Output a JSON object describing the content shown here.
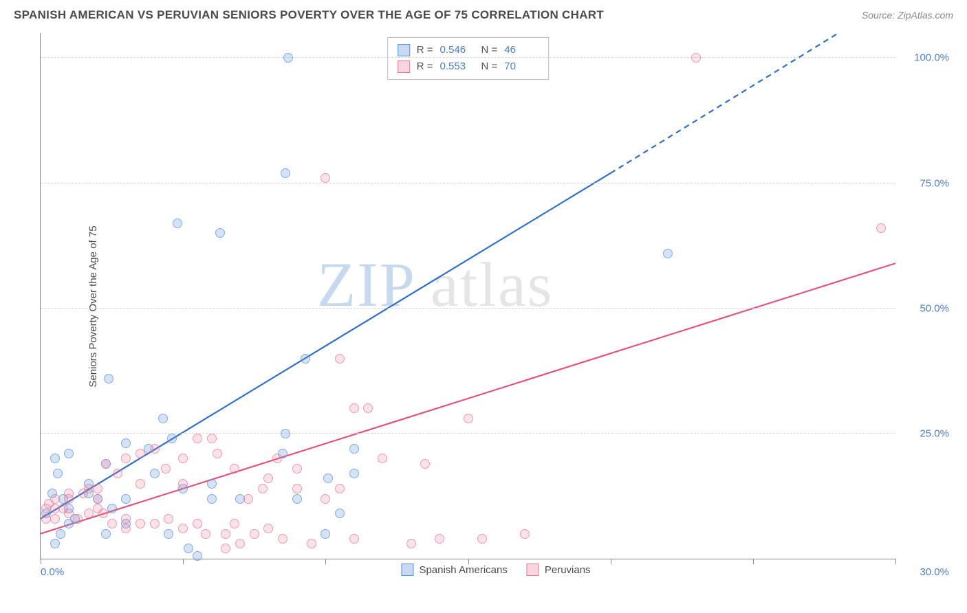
{
  "title": "SPANISH AMERICAN VS PERUVIAN SENIORS POVERTY OVER THE AGE OF 75 CORRELATION CHART",
  "source": "Source: ZipAtlas.com",
  "chart": {
    "type": "scatter",
    "y_axis_label": "Seniors Poverty Over the Age of 75",
    "xlim": [
      0,
      30
    ],
    "ylim": [
      0,
      105
    ],
    "x_ticks": [
      0,
      5,
      10,
      15,
      20,
      25,
      30
    ],
    "x_tick_labels_shown": {
      "0": "0.0%",
      "30": "30.0%"
    },
    "y_ticks": [
      25,
      50,
      75,
      100
    ],
    "y_tick_labels": [
      "25.0%",
      "50.0%",
      "75.0%",
      "100.0%"
    ],
    "background_color": "#ffffff",
    "grid_color": "#d8d8d8",
    "series": [
      {
        "name": "Spanish Americans",
        "color_fill": "rgba(96,150,220,0.35)",
        "color_stroke": "#5a8fd6",
        "marker_size": 14,
        "R": "0.546",
        "N": "46",
        "trend": {
          "x1": 0,
          "y1": 8,
          "x2_solid": 20,
          "y2_solid": 77,
          "x2_dash": 28,
          "y2_dash": 105,
          "stroke": "#2e6fc9",
          "width": 2.2
        },
        "points": [
          [
            8.7,
            100
          ],
          [
            8.6,
            77
          ],
          [
            4.8,
            67
          ],
          [
            6.3,
            65
          ],
          [
            9.3,
            40
          ],
          [
            2.4,
            36
          ],
          [
            4.3,
            28
          ],
          [
            4.6,
            24
          ],
          [
            8.6,
            25
          ],
          [
            1.0,
            21
          ],
          [
            3.0,
            23
          ],
          [
            3.8,
            22
          ],
          [
            2.3,
            19
          ],
          [
            0.5,
            20
          ],
          [
            0.6,
            17
          ],
          [
            0.4,
            13
          ],
          [
            0.8,
            12
          ],
          [
            1.7,
            13
          ],
          [
            1.0,
            10
          ],
          [
            2.0,
            12
          ],
          [
            0.2,
            9
          ],
          [
            1.2,
            8
          ],
          [
            2.5,
            10
          ],
          [
            1.7,
            15
          ],
          [
            3.0,
            12
          ],
          [
            3.0,
            7
          ],
          [
            4.5,
            5
          ],
          [
            5.5,
            0.5
          ],
          [
            5.2,
            2
          ],
          [
            2.3,
            5
          ],
          [
            1.0,
            7
          ],
          [
            0.7,
            5
          ],
          [
            0.5,
            3
          ],
          [
            10.0,
            5
          ],
          [
            10.5,
            9
          ],
          [
            10.1,
            16
          ],
          [
            8.5,
            21
          ],
          [
            6.0,
            12
          ],
          [
            6.0,
            15
          ],
          [
            7.0,
            12
          ],
          [
            11.0,
            22
          ],
          [
            11.0,
            17
          ],
          [
            22.0,
            61
          ],
          [
            9.0,
            12
          ],
          [
            5.0,
            14
          ],
          [
            4.0,
            17
          ]
        ]
      },
      {
        "name": "Peruvians",
        "color_fill": "rgba(235,120,150,0.28)",
        "color_stroke": "#e67a96",
        "marker_size": 14,
        "R": "0.553",
        "N": "70",
        "trend": {
          "x1": 0,
          "y1": 5,
          "x2_solid": 30,
          "y2_solid": 59,
          "stroke": "#e3547d",
          "width": 2.2
        },
        "points": [
          [
            10.0,
            76
          ],
          [
            23.0,
            100
          ],
          [
            29.5,
            66
          ],
          [
            10.5,
            40
          ],
          [
            11.0,
            30
          ],
          [
            11.5,
            30
          ],
          [
            15.0,
            28
          ],
          [
            13.5,
            19
          ],
          [
            12.0,
            20
          ],
          [
            8.3,
            20
          ],
          [
            9.0,
            18
          ],
          [
            9.0,
            14
          ],
          [
            10.5,
            14
          ],
          [
            10.0,
            12
          ],
          [
            8.0,
            16
          ],
          [
            7.8,
            14
          ],
          [
            7.3,
            12
          ],
          [
            6.8,
            18
          ],
          [
            6.0,
            24
          ],
          [
            6.2,
            21
          ],
          [
            5.5,
            24
          ],
          [
            5.0,
            20
          ],
          [
            5.0,
            15
          ],
          [
            4.0,
            22
          ],
          [
            4.4,
            18
          ],
          [
            3.5,
            21
          ],
          [
            3.5,
            15
          ],
          [
            3.0,
            20
          ],
          [
            2.7,
            17
          ],
          [
            2.3,
            19
          ],
          [
            2.0,
            14
          ],
          [
            2.0,
            12
          ],
          [
            1.7,
            14
          ],
          [
            1.5,
            13
          ],
          [
            1.0,
            13
          ],
          [
            1.0,
            12
          ],
          [
            0.5,
            12
          ],
          [
            0.5,
            10
          ],
          [
            0.3,
            11
          ],
          [
            0.2,
            10
          ],
          [
            0.2,
            8
          ],
          [
            0.5,
            8
          ],
          [
            0.8,
            10
          ],
          [
            1.0,
            9
          ],
          [
            1.3,
            8
          ],
          [
            1.7,
            9
          ],
          [
            2.0,
            10
          ],
          [
            2.2,
            9
          ],
          [
            2.5,
            7
          ],
          [
            3.0,
            8
          ],
          [
            3.5,
            7
          ],
          [
            3.0,
            6
          ],
          [
            4.0,
            7
          ],
          [
            4.5,
            8
          ],
          [
            5.0,
            6
          ],
          [
            5.5,
            7
          ],
          [
            5.8,
            5
          ],
          [
            6.5,
            5
          ],
          [
            6.8,
            7
          ],
          [
            7.0,
            3
          ],
          [
            6.5,
            2
          ],
          [
            7.5,
            5
          ],
          [
            8.0,
            6
          ],
          [
            8.5,
            4
          ],
          [
            9.5,
            3
          ],
          [
            11.0,
            4
          ],
          [
            13.0,
            3
          ],
          [
            14.0,
            4
          ],
          [
            15.5,
            4
          ],
          [
            17.0,
            5
          ]
        ]
      }
    ],
    "watermark": {
      "zip": "ZIP",
      "atlas": "atlas"
    }
  },
  "stats_box": {
    "rows": [
      {
        "swatch": "blue",
        "r_label": "R =",
        "r_value": "0.546",
        "n_label": "N =",
        "n_value": "46"
      },
      {
        "swatch": "pink",
        "r_label": "R =",
        "r_value": "0.553",
        "n_label": "N =",
        "n_value": "70"
      }
    ]
  },
  "legend": {
    "items": [
      {
        "swatch": "blue",
        "label": "Spanish Americans"
      },
      {
        "swatch": "pink",
        "label": "Peruvians"
      }
    ]
  }
}
